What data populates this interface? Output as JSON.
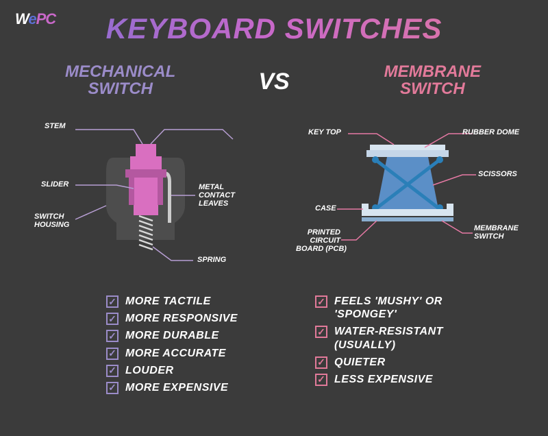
{
  "logo": {
    "w": "W",
    "e": "e",
    "pc": "PC"
  },
  "title": "KEYBOARD SWITCHES",
  "vs": "VS",
  "colors": {
    "bg": "#3b3b3b",
    "left_accent": "#9b8cc9",
    "right_accent": "#e27a9a",
    "mech_pink": "#d96fc0",
    "mech_pink_dark": "#b458a0",
    "mech_grey": "#5a5a5a",
    "mech_spring": "#d8d8d8",
    "memb_blue": "#5b8fc7",
    "memb_light": "#d8e5f0",
    "memb_dot": "#2a7fb8",
    "leader_purple": "#b89fd4",
    "leader_pink": "#e87aa5"
  },
  "left": {
    "heading_l1": "MECHANICAL",
    "heading_l2": "SWITCH",
    "labels": {
      "stem": "STEM",
      "slider": "SLIDER",
      "housing_l1": "SWITCH",
      "housing_l2": "HOUSING",
      "contact_l1": "METAL",
      "contact_l2": "CONTACT",
      "contact_l3": "LEAVES",
      "spring": "SPRING"
    },
    "features": [
      "MORE TACTILE",
      "MORE RESPONSIVE",
      "MORE DURABLE",
      "MORE ACCURATE",
      "LOUDER",
      "MORE EXPENSIVE"
    ]
  },
  "right": {
    "heading_l1": "MEMBRANE",
    "heading_l2": "SWITCH",
    "labels": {
      "keytop": "KEY TOP",
      "rubber": "RUBBER DOME",
      "scissors": "SCISSORS",
      "case": "CASE",
      "pcb_l1": "PRINTED",
      "pcb_l2": "CIRCUIT",
      "pcb_l3": "BOARD (PCB)",
      "membrane_l1": "MEMBRANE",
      "membrane_l2": "SWITCH"
    },
    "features": [
      "FEELS 'MUSHY' OR 'SPONGEY'",
      "WATER-RESISTANT (USUALLY)",
      "QUIETER",
      "LESS EXPENSIVE"
    ]
  }
}
